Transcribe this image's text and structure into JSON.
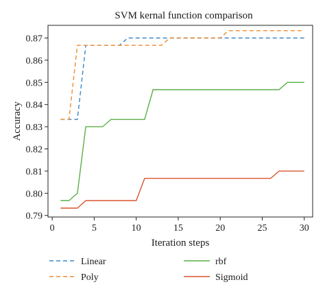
{
  "chart_data": {
    "type": "line",
    "title": "SVM kernal function comparison",
    "xlabel": "Iteration steps",
    "ylabel": "Accuracy",
    "xlim": [
      -0.5,
      31
    ],
    "ylim": [
      0.7893,
      0.8757
    ],
    "xticks": [
      0,
      5,
      10,
      15,
      20,
      25,
      30
    ],
    "yticks": [
      0.79,
      0.8,
      0.81,
      0.82,
      0.83,
      0.84,
      0.85,
      0.86,
      0.87
    ],
    "ytick_labels": [
      "0.79",
      "0.80",
      "0.81",
      "0.82",
      "0.83",
      "0.84",
      "0.85",
      "0.86",
      "0.87"
    ],
    "grid": false,
    "legend_position": "bottom",
    "series": [
      {
        "name": "Linear",
        "color": "#3b86c6",
        "dash": "dashed",
        "x": [
          1,
          3,
          4,
          8,
          9,
          30
        ],
        "y": [
          0.8333,
          0.8333,
          0.8667,
          0.8667,
          0.87,
          0.87
        ]
      },
      {
        "name": "Poly",
        "color": "#ef8a2e",
        "dash": "dashed",
        "x": [
          1,
          2,
          3,
          13,
          14,
          20,
          21,
          30
        ],
        "y": [
          0.8333,
          0.8333,
          0.8667,
          0.8667,
          0.87,
          0.87,
          0.8733,
          0.8733
        ]
      },
      {
        "name": "rbf",
        "color": "#5aae46",
        "dash": "solid",
        "x": [
          1,
          2,
          3,
          4,
          6,
          7,
          11,
          12,
          27,
          28,
          30
        ],
        "y": [
          0.7967,
          0.7967,
          0.8,
          0.83,
          0.83,
          0.8333,
          0.8333,
          0.8467,
          0.8467,
          0.85,
          0.85
        ]
      },
      {
        "name": "Sigmoid",
        "color": "#d9542f",
        "dash": "solid",
        "x": [
          1,
          3,
          4,
          10,
          11,
          26,
          27,
          30
        ],
        "y": [
          0.7933,
          0.7933,
          0.7967,
          0.7967,
          0.8067,
          0.8067,
          0.81,
          0.81
        ]
      }
    ]
  }
}
